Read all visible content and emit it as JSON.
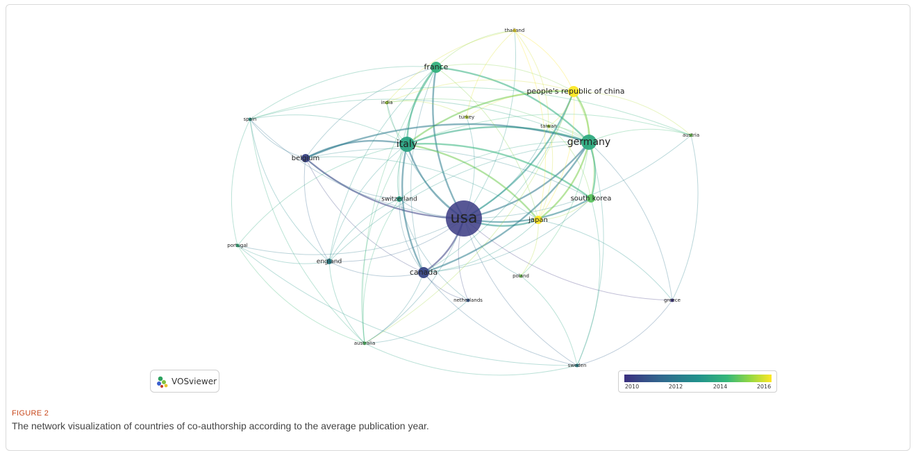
{
  "figure": {
    "label": "FIGURE 2",
    "caption": "The network visualization of countries of co-authorship according to the average publication year."
  },
  "logo": {
    "text": "VOSviewer",
    "icon": "vosviewer-logo-icon"
  },
  "legend": {
    "ticks": [
      "2010",
      "2012",
      "2014",
      "2016"
    ],
    "colors": [
      "#3b2f7f",
      "#31688e",
      "#21918c",
      "#35b779",
      "#90d743",
      "#fde725"
    ]
  },
  "network": {
    "nodes": [
      {
        "id": "usa",
        "label": "usa",
        "year": 2010.3,
        "weight": 10
      },
      {
        "id": "italy",
        "label": "italy",
        "year": 2013.6,
        "weight": 5
      },
      {
        "id": "germany",
        "label": "germany",
        "year": 2013.8,
        "weight": 5
      },
      {
        "id": "canada",
        "label": "canada",
        "year": 2010.6,
        "weight": 4
      },
      {
        "id": "france",
        "label": "france",
        "year": 2014.0,
        "weight": 4
      },
      {
        "id": "china",
        "label": "people's republic of china",
        "year": 2016.0,
        "weight": 4
      },
      {
        "id": "southkorea",
        "label": "south korea",
        "year": 2014.6,
        "weight": 3
      },
      {
        "id": "japan",
        "label": "japan",
        "year": 2016.0,
        "weight": 3
      },
      {
        "id": "belgium",
        "label": "belgium",
        "year": 2010.5,
        "weight": 3
      },
      {
        "id": "switzerland",
        "label": "switzerland",
        "year": 2013.5,
        "weight": 2
      },
      {
        "id": "england",
        "label": "england",
        "year": 2012.5,
        "weight": 2
      },
      {
        "id": "india",
        "label": "india",
        "year": 2015.3,
        "weight": 1
      },
      {
        "id": "turkey",
        "label": "turkey",
        "year": 2015.5,
        "weight": 1
      },
      {
        "id": "taiwan",
        "label": "taiwan",
        "year": 2015.3,
        "weight": 1
      },
      {
        "id": "spain",
        "label": "spain",
        "year": 2013.2,
        "weight": 1
      },
      {
        "id": "thailand",
        "label": "thailand",
        "year": 2016.0,
        "weight": 1
      },
      {
        "id": "austria",
        "label": "austria",
        "year": 2014.8,
        "weight": 1
      },
      {
        "id": "portugal",
        "label": "portugal",
        "year": 2014.0,
        "weight": 1
      },
      {
        "id": "poland",
        "label": "poland",
        "year": 2014.8,
        "weight": 1
      },
      {
        "id": "netherlands",
        "label": "netherlands",
        "year": 2011.0,
        "weight": 1
      },
      {
        "id": "greece",
        "label": "greece",
        "year": 2010.0,
        "weight": 1
      },
      {
        "id": "australia",
        "label": "australia",
        "year": 2014.5,
        "weight": 1
      },
      {
        "id": "sweden",
        "label": "sweden",
        "year": 2012.5,
        "weight": 1
      }
    ],
    "links": [
      [
        "usa",
        "italy"
      ],
      [
        "usa",
        "germany"
      ],
      [
        "usa",
        "canada"
      ],
      [
        "usa",
        "france"
      ],
      [
        "usa",
        "china"
      ],
      [
        "usa",
        "southkorea"
      ],
      [
        "usa",
        "japan"
      ],
      [
        "usa",
        "belgium"
      ],
      [
        "usa",
        "switzerland"
      ],
      [
        "usa",
        "england"
      ],
      [
        "usa",
        "india"
      ],
      [
        "usa",
        "turkey"
      ],
      [
        "usa",
        "taiwan"
      ],
      [
        "usa",
        "spain"
      ],
      [
        "usa",
        "thailand"
      ],
      [
        "usa",
        "austria"
      ],
      [
        "usa",
        "portugal"
      ],
      [
        "usa",
        "poland"
      ],
      [
        "usa",
        "netherlands"
      ],
      [
        "usa",
        "greece"
      ],
      [
        "usa",
        "australia"
      ],
      [
        "usa",
        "sweden"
      ],
      [
        "italy",
        "germany"
      ],
      [
        "italy",
        "france"
      ],
      [
        "italy",
        "canada"
      ],
      [
        "italy",
        "belgium"
      ],
      [
        "italy",
        "switzerland"
      ],
      [
        "italy",
        "spain"
      ],
      [
        "italy",
        "england"
      ],
      [
        "italy",
        "china"
      ],
      [
        "italy",
        "japan"
      ],
      [
        "italy",
        "southkorea"
      ],
      [
        "italy",
        "india"
      ],
      [
        "italy",
        "australia"
      ],
      [
        "italy",
        "portugal"
      ],
      [
        "italy",
        "austria"
      ],
      [
        "germany",
        "france"
      ],
      [
        "germany",
        "china"
      ],
      [
        "germany",
        "southkorea"
      ],
      [
        "germany",
        "japan"
      ],
      [
        "germany",
        "canada"
      ],
      [
        "germany",
        "belgium"
      ],
      [
        "germany",
        "austria"
      ],
      [
        "germany",
        "taiwan"
      ],
      [
        "germany",
        "switzerland"
      ],
      [
        "germany",
        "england"
      ],
      [
        "germany",
        "spain"
      ],
      [
        "germany",
        "greece"
      ],
      [
        "germany",
        "sweden"
      ],
      [
        "germany",
        "poland"
      ],
      [
        "canada",
        "belgium"
      ],
      [
        "canada",
        "england"
      ],
      [
        "canada",
        "france"
      ],
      [
        "canada",
        "china"
      ],
      [
        "canada",
        "southkorea"
      ],
      [
        "canada",
        "japan"
      ],
      [
        "canada",
        "netherlands"
      ],
      [
        "canada",
        "australia"
      ],
      [
        "canada",
        "switzerland"
      ],
      [
        "canada",
        "sweden"
      ],
      [
        "france",
        "belgium"
      ],
      [
        "france",
        "spain"
      ],
      [
        "france",
        "switzerland"
      ],
      [
        "france",
        "china"
      ],
      [
        "france",
        "england"
      ],
      [
        "france",
        "australia"
      ],
      [
        "france",
        "japan"
      ],
      [
        "china",
        "japan"
      ],
      [
        "china",
        "southkorea"
      ],
      [
        "china",
        "taiwan"
      ],
      [
        "china",
        "thailand"
      ],
      [
        "china",
        "turkey"
      ],
      [
        "china",
        "india"
      ],
      [
        "china",
        "austria"
      ],
      [
        "china",
        "australia"
      ],
      [
        "southkorea",
        "japan"
      ],
      [
        "southkorea",
        "taiwan"
      ],
      [
        "southkorea",
        "sweden"
      ],
      [
        "belgium",
        "england"
      ],
      [
        "belgium",
        "spain"
      ],
      [
        "belgium",
        "switzerland"
      ],
      [
        "belgium",
        "japan"
      ],
      [
        "belgium",
        "southkorea"
      ],
      [
        "england",
        "spain"
      ],
      [
        "england",
        "portugal"
      ],
      [
        "england",
        "australia"
      ],
      [
        "england",
        "switzerland"
      ],
      [
        "spain",
        "portugal"
      ],
      [
        "spain",
        "australia"
      ],
      [
        "thailand",
        "turkey"
      ],
      [
        "thailand",
        "japan"
      ],
      [
        "thailand",
        "india"
      ],
      [
        "thailand",
        "taiwan"
      ],
      [
        "japan",
        "greece"
      ],
      [
        "japan",
        "poland"
      ],
      [
        "switzerland",
        "australia"
      ],
      [
        "switzerland",
        "netherlands"
      ],
      [
        "poland",
        "sweden"
      ],
      [
        "greece",
        "sweden"
      ],
      [
        "australia",
        "sweden"
      ],
      [
        "austria",
        "greece"
      ],
      [
        "portugal",
        "australia"
      ],
      [
        "india",
        "turkey"
      ],
      [
        "taiwan",
        "japan"
      ],
      [
        "france",
        "thailand"
      ],
      [
        "germany",
        "india"
      ],
      [
        "spain",
        "austria"
      ],
      [
        "portugal",
        "sweden"
      ],
      [
        "netherlands",
        "australia"
      ]
    ]
  }
}
